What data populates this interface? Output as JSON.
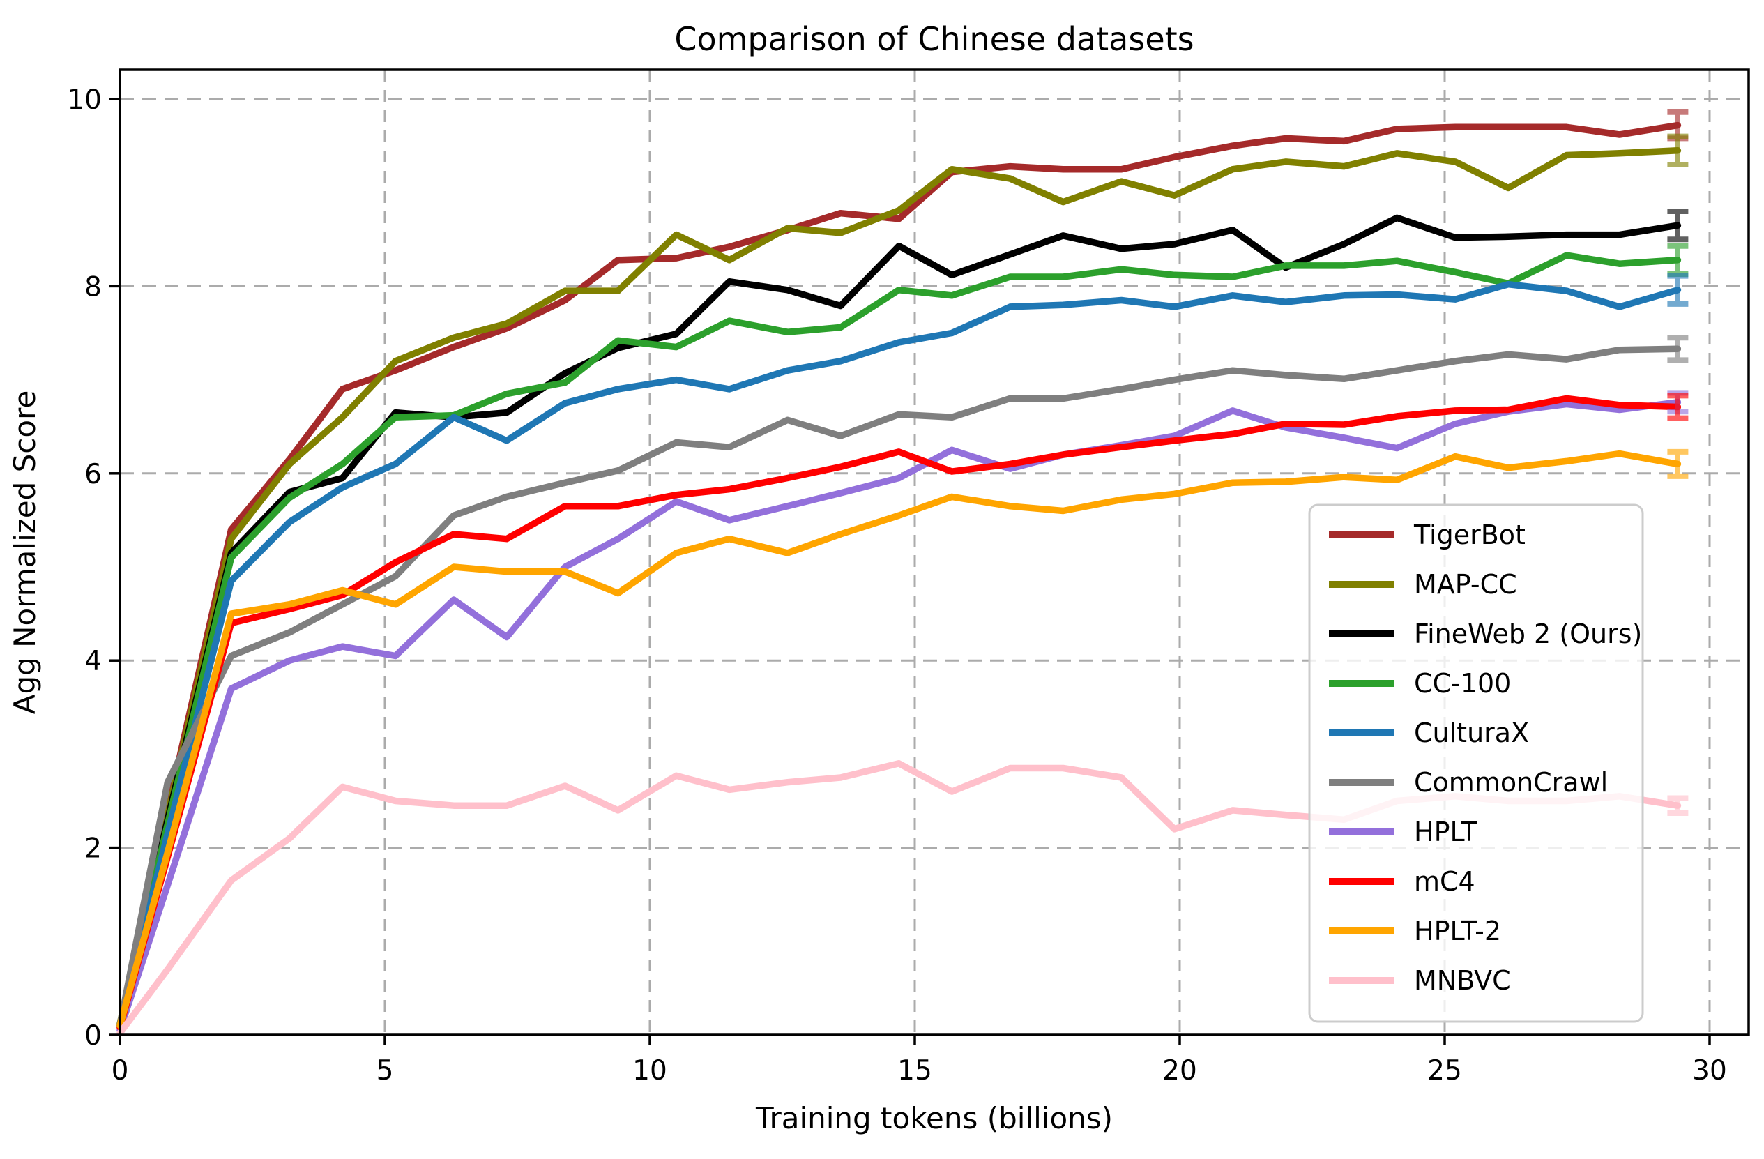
{
  "figure": {
    "background": "#ffffff"
  },
  "chart_data": {
    "type": "line",
    "title": "Comparison of Chinese datasets",
    "xlabel": "Training tokens (billions)",
    "ylabel": "Agg Normalized Score",
    "xlim": [
      0,
      30.75
    ],
    "ylim": [
      0,
      10.31
    ],
    "xticks": [
      0,
      5,
      10,
      15,
      20,
      25,
      30
    ],
    "yticks": [
      0,
      2,
      4,
      6,
      8,
      10
    ],
    "grid": true,
    "grid_color": "#ababab",
    "legend_position": "lower right",
    "x": [
      0,
      0.9,
      2.1,
      3.2,
      4.2,
      5.2,
      6.3,
      7.3,
      8.4,
      9.4,
      10.5,
      11.5,
      12.6,
      13.6,
      14.7,
      15.7,
      16.8,
      17.8,
      18.9,
      19.9,
      21.0,
      22.0,
      23.1,
      24.1,
      25.2,
      26.2,
      27.3,
      28.3,
      29.4
    ],
    "series": [
      {
        "name": "TigerBot",
        "color": "#A52A2A",
        "final_error": 0.14,
        "values": [
          0.1,
          2.4,
          5.4,
          6.15,
          6.9,
          7.1,
          7.35,
          7.55,
          7.85,
          8.28,
          8.3,
          8.42,
          8.6,
          8.78,
          8.72,
          9.22,
          9.28,
          9.25,
          9.25,
          9.38,
          9.5,
          9.58,
          9.55,
          9.68,
          9.7,
          9.7,
          9.7,
          9.62,
          9.72
        ]
      },
      {
        "name": "MAP-CC",
        "color": "#808000",
        "final_error": 0.15,
        "values": [
          0.12,
          2.35,
          5.3,
          6.1,
          6.6,
          7.2,
          7.45,
          7.6,
          7.95,
          7.95,
          8.55,
          8.28,
          8.62,
          8.57,
          8.81,
          9.25,
          9.15,
          8.9,
          9.12,
          8.97,
          9.25,
          9.33,
          9.28,
          9.42,
          9.33,
          9.05,
          9.4,
          9.42,
          9.45
        ]
      },
      {
        "name": "FineWeb 2 (Ours)",
        "color": "#000000",
        "final_error": 0.15,
        "values": [
          0.1,
          2.3,
          5.15,
          5.8,
          5.95,
          6.65,
          6.6,
          6.65,
          7.07,
          7.34,
          7.49,
          8.05,
          7.96,
          7.79,
          8.43,
          8.12,
          8.34,
          8.54,
          8.4,
          8.45,
          8.6,
          8.2,
          8.45,
          8.73,
          8.52,
          8.53,
          8.55,
          8.55,
          8.65
        ]
      },
      {
        "name": "CC-100",
        "color": "#2CA02C",
        "final_error": 0.15,
        "values": [
          0.1,
          2.25,
          5.1,
          5.74,
          6.1,
          6.6,
          6.62,
          6.85,
          6.97,
          7.42,
          7.35,
          7.63,
          7.51,
          7.56,
          7.96,
          7.9,
          8.1,
          8.1,
          8.18,
          8.12,
          8.1,
          8.22,
          8.22,
          8.27,
          8.15,
          8.03,
          8.33,
          8.24,
          8.28
        ]
      },
      {
        "name": "CulturaX",
        "color": "#1F77B4",
        "final_error": 0.15,
        "values": [
          0.08,
          2.15,
          4.85,
          5.48,
          5.85,
          6.1,
          6.6,
          6.35,
          6.75,
          6.9,
          7.0,
          6.9,
          7.1,
          7.2,
          7.4,
          7.5,
          7.78,
          7.8,
          7.85,
          7.78,
          7.9,
          7.83,
          7.9,
          7.91,
          7.86,
          8.02,
          7.95,
          7.78,
          7.96
        ]
      },
      {
        "name": "CommonCrawl",
        "color": "#7F7F7F",
        "final_error": 0.12,
        "values": [
          0.1,
          2.7,
          4.05,
          4.3,
          4.6,
          4.9,
          5.55,
          5.75,
          5.9,
          6.03,
          6.33,
          6.28,
          6.57,
          6.4,
          6.63,
          6.6,
          6.8,
          6.8,
          6.9,
          7.0,
          7.1,
          7.05,
          7.01,
          7.1,
          7.2,
          7.27,
          7.22,
          7.32,
          7.33
        ]
      },
      {
        "name": "HPLT",
        "color": "#9370DB",
        "final_error": 0.1,
        "values": [
          0.05,
          1.6,
          3.7,
          4.0,
          4.15,
          4.05,
          4.65,
          4.25,
          5.0,
          5.3,
          5.7,
          5.5,
          5.65,
          5.79,
          5.95,
          6.25,
          6.05,
          6.2,
          6.3,
          6.4,
          6.67,
          6.49,
          6.38,
          6.27,
          6.53,
          6.66,
          6.74,
          6.68,
          6.76
        ]
      },
      {
        "name": "mC4",
        "color": "#FF0000",
        "final_error": 0.12,
        "values": [
          0.08,
          1.9,
          4.4,
          4.55,
          4.7,
          5.05,
          5.35,
          5.3,
          5.65,
          5.65,
          5.77,
          5.83,
          5.95,
          6.07,
          6.23,
          6.02,
          6.1,
          6.2,
          6.28,
          6.35,
          6.42,
          6.53,
          6.52,
          6.61,
          6.67,
          6.68,
          6.8,
          6.73,
          6.71
        ]
      },
      {
        "name": "HPLT-2",
        "color": "#FFA500",
        "final_error": 0.13,
        "values": [
          0.1,
          1.95,
          4.5,
          4.6,
          4.75,
          4.6,
          5.0,
          4.95,
          4.95,
          4.72,
          5.15,
          5.3,
          5.15,
          5.35,
          5.55,
          5.75,
          5.65,
          5.6,
          5.72,
          5.78,
          5.9,
          5.91,
          5.96,
          5.93,
          6.18,
          6.06,
          6.13,
          6.21,
          6.1
        ]
      },
      {
        "name": "MNBVC",
        "color": "#FFC0CB",
        "final_error": 0.08,
        "values": [
          0.02,
          0.7,
          1.65,
          2.1,
          2.65,
          2.5,
          2.45,
          2.45,
          2.66,
          2.4,
          2.77,
          2.62,
          2.7,
          2.75,
          2.9,
          2.6,
          2.85,
          2.85,
          2.75,
          2.2,
          2.4,
          2.35,
          2.3,
          2.5,
          2.55,
          2.5,
          2.5,
          2.55,
          2.45
        ]
      }
    ]
  }
}
